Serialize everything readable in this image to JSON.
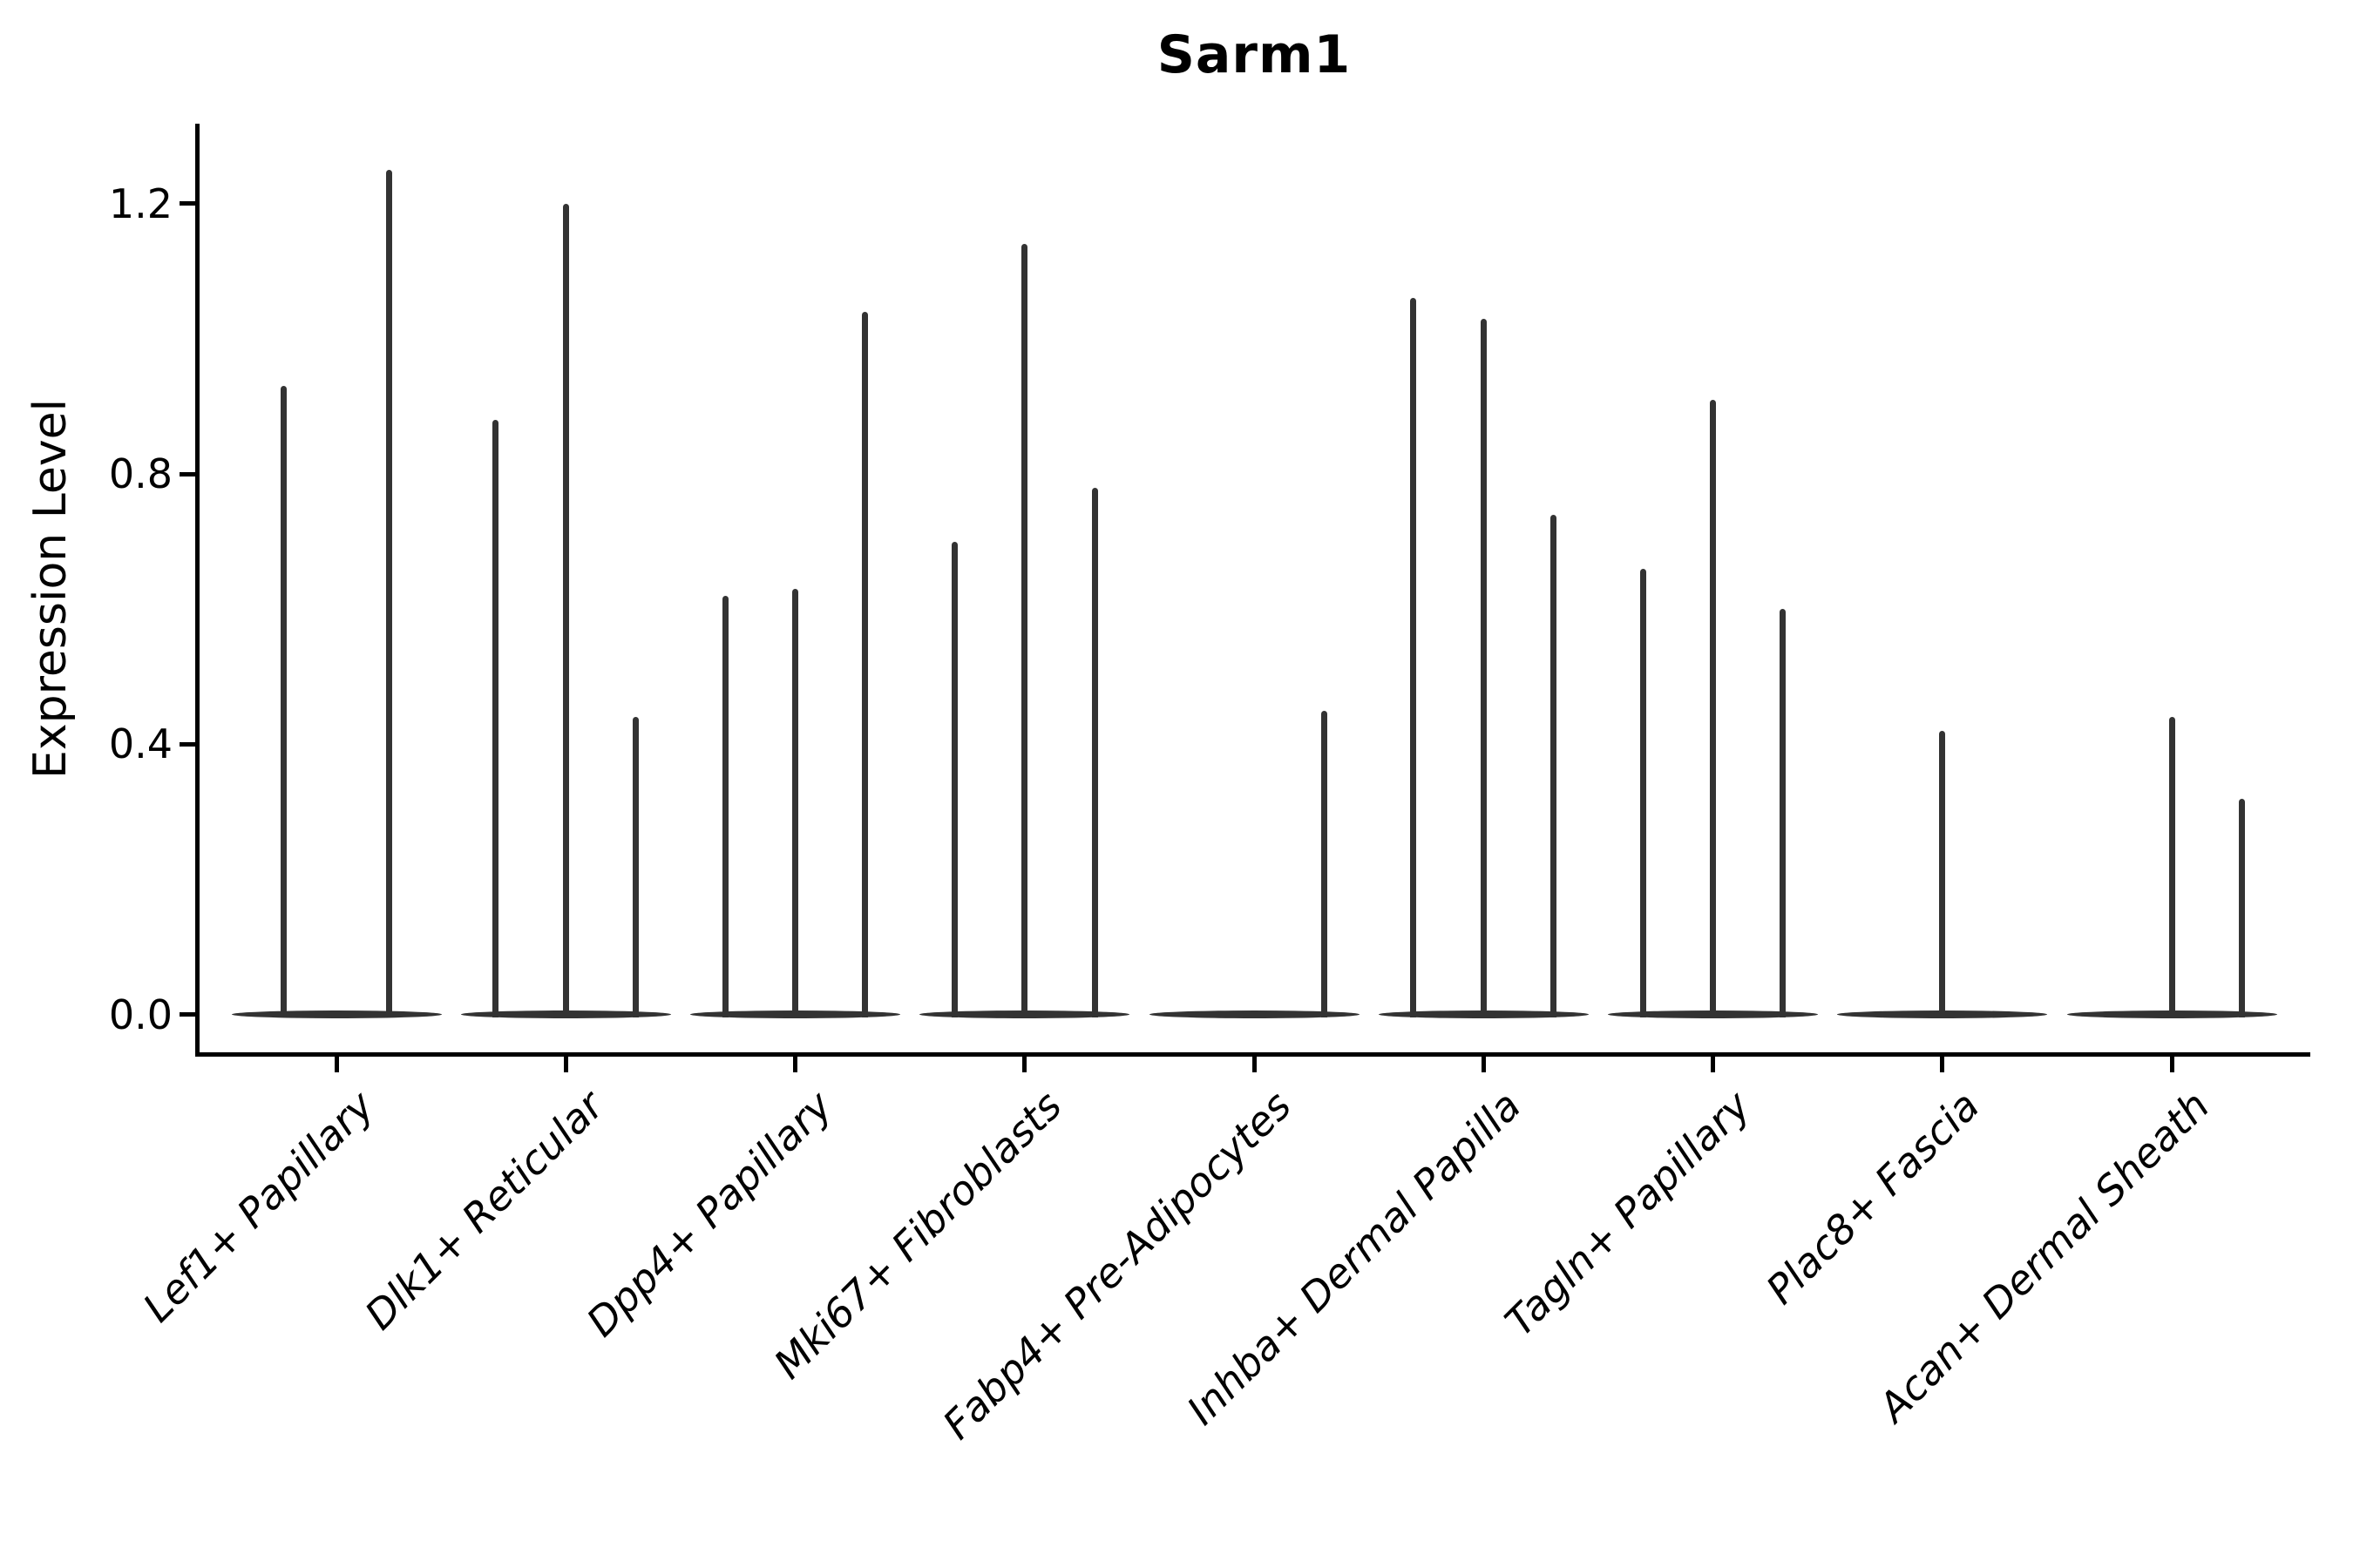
{
  "title": "Sarm1",
  "y_axis": {
    "label": "Expression Level",
    "tick_labels": [
      "0.0",
      "0.4",
      "0.8",
      "1.2"
    ]
  },
  "colors": {
    "violin": "#333333",
    "axis": "#000000",
    "text": "#000000",
    "background": "#ffffff"
  },
  "chart_data": {
    "type": "violin",
    "title": "Sarm1",
    "xlabel": "",
    "ylabel": "Expression Level",
    "ylim": [
      -0.062,
      1.318
    ],
    "y_ticks": [
      0.0,
      0.4,
      0.8,
      1.2
    ],
    "grid": false,
    "legend": false,
    "categories": [
      "Lef1+ Papillary",
      "Dlk1+ Reticular",
      "Dpp4+ Papillary",
      "Mki67+ Fibroblasts",
      "Fabp4+ Pre-Adipocytes",
      "Inhba+ Dermal Papilla",
      "Tagln+ Papillary",
      "Plac8+ Fascia",
      "Acan+ Dermal Sheath"
    ],
    "violin_max_expression": [
      [
        0.93,
        1.25
      ],
      [
        0.88,
        1.2,
        0.44
      ],
      [
        0.62,
        0.63,
        1.04
      ],
      [
        0.7,
        1.14,
        0.78
      ],
      [
        0.0,
        0.0,
        0.45
      ],
      [
        1.06,
        1.03,
        0.74
      ],
      [
        0.66,
        0.91,
        0.6
      ],
      [
        0.0,
        0.42,
        0.0
      ],
      [
        0.0,
        0.44,
        0.32
      ]
    ]
  }
}
